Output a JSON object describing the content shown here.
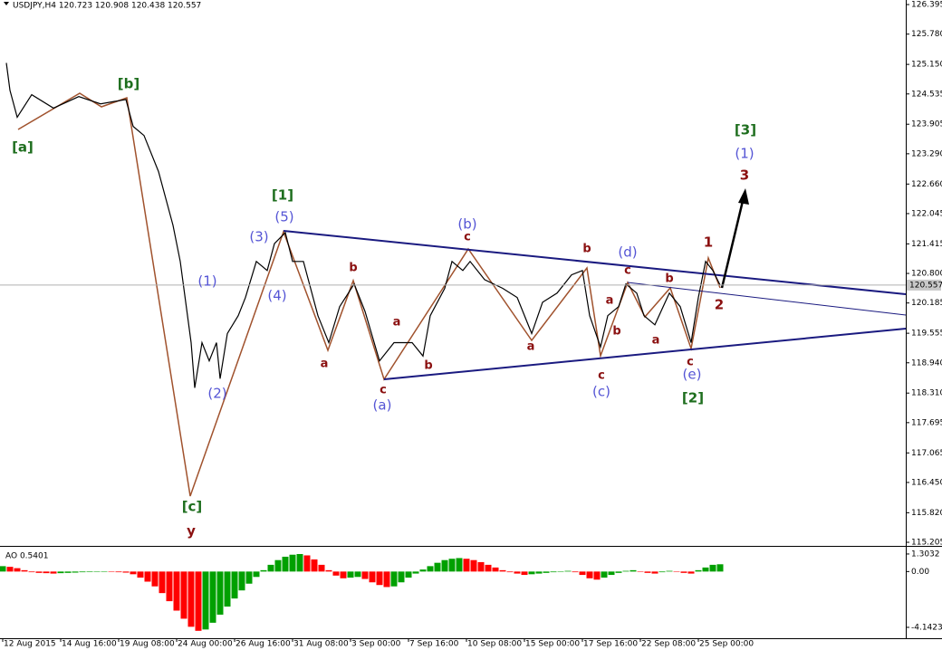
{
  "chart_data": [
    {
      "type": "line",
      "title": "USDJPY,H4  120.723 120.908 120.438 120.557",
      "x": [
        1,
        2,
        4,
        8,
        14,
        21,
        27,
        34,
        36,
        39,
        43,
        47,
        49,
        52,
        53,
        55,
        57,
        59,
        60,
        62,
        65,
        67,
        70,
        73,
        75,
        78,
        80,
        83,
        87,
        90,
        93,
        97,
        100,
        104,
        108,
        113,
        116,
        118,
        122,
        124,
        127,
        129,
        133,
        138,
        142,
        146,
        149,
        153,
        157,
        160,
        162,
        165,
        167,
        170,
        172,
        175,
        177,
        180,
        184,
        187,
        190,
        192,
        194,
        196,
        198
      ],
      "series": [
        {
          "name": "USDJPY",
          "color": "#000000",
          "values": [
            125.18,
            124.61,
            124.05,
            124.52,
            124.24,
            124.48,
            124.33,
            124.42,
            123.86,
            123.67,
            122.92,
            121.8,
            121.05,
            119.36,
            118.42,
            119.36,
            118.98,
            119.36,
            118.61,
            119.55,
            119.92,
            120.3,
            121.05,
            120.86,
            121.42,
            121.65,
            121.05,
            121.05,
            119.92,
            119.36,
            120.11,
            120.58,
            120.01,
            118.98,
            119.36,
            119.36,
            119.08,
            119.92,
            120.49,
            121.05,
            120.86,
            121.05,
            120.67,
            120.49,
            120.3,
            119.55,
            120.2,
            120.39,
            120.77,
            120.86,
            119.92,
            119.27,
            119.92,
            120.11,
            120.58,
            120.39,
            119.92,
            119.73,
            120.39,
            120.11,
            119.36,
            120.3,
            121.05,
            120.86,
            120.557
          ]
        }
      ],
      "last_price": 120.557,
      "xlim": [
        -0.75,
        249.25
      ],
      "ylim": [
        115.13,
        126.49
      ],
      "yticks": [
        126.395,
        {
          "value": 125.78,
          "label": "125.780"
        },
        {
          "value": 125.15,
          "label": "125.150"
        },
        124.535,
        123.905,
        {
          "value": 123.29,
          "label": "123.290"
        },
        {
          "value": 122.66,
          "label": "122.660"
        },
        122.045,
        121.415,
        {
          "value": 120.8,
          "label": "120.800"
        },
        120.185,
        119.555,
        {
          "value": 118.94,
          "label": "118.940"
        },
        {
          "value": 118.31,
          "label": "118.310"
        },
        117.695,
        117.065,
        {
          "value": 116.45,
          "label": "116.450"
        },
        {
          "value": 115.82,
          "label": "115.820"
        },
        115.205
      ],
      "annotations": [
        {
          "text": "[a]",
          "color": "#1e6e1e"
        },
        {
          "text": "[b]",
          "color": "#1e6e1e"
        },
        {
          "text": "[c]",
          "color": "#1e6e1e"
        },
        {
          "text": "y",
          "color": "#8b1010"
        },
        {
          "text": "[1]",
          "color": "#1e6e1e"
        },
        {
          "text": "(5)",
          "color": "#5555d5"
        },
        {
          "text": "(3)",
          "color": "#5555d5"
        },
        {
          "text": "(4)",
          "color": "#5555d5"
        },
        {
          "text": "(1)",
          "color": "#5555d5"
        },
        {
          "text": "(2)",
          "color": "#5555d5"
        },
        {
          "text": "b",
          "color": "#8b1010"
        },
        {
          "text": "a",
          "color": "#8b1010"
        },
        {
          "text": "a",
          "color": "#8b1010"
        },
        {
          "text": "c",
          "color": "#8b1010"
        },
        {
          "text": "(a)",
          "color": "#5555d5"
        },
        {
          "text": "b",
          "color": "#8b1010"
        },
        {
          "text": "(b)",
          "color": "#5555d5"
        },
        {
          "text": "c",
          "color": "#8b1010"
        },
        {
          "text": "b",
          "color": "#8b1010"
        },
        {
          "text": "a",
          "color": "#8b1010"
        },
        {
          "text": "(d)",
          "color": "#5555d5"
        },
        {
          "text": "c",
          "color": "#8b1010"
        },
        {
          "text": "a",
          "color": "#8b1010"
        },
        {
          "text": "b",
          "color": "#8b1010"
        },
        {
          "text": "c",
          "color": "#8b1010"
        },
        {
          "text": "(c)",
          "color": "#5555d5"
        },
        {
          "text": "b",
          "color": "#8b1010"
        },
        {
          "text": "a",
          "color": "#8b1010"
        },
        {
          "text": "c",
          "color": "#8b1010"
        },
        {
          "text": "(e)",
          "color": "#5555d5"
        },
        {
          "text": "[2]",
          "color": "#1e6e1e"
        },
        {
          "text": "1",
          "color": "#8b1010"
        },
        {
          "text": "2",
          "color": "#8b1010"
        },
        {
          "text": "[3]",
          "color": "#1e6e1e"
        },
        {
          "text": "(1)",
          "color": "#5555d5"
        },
        {
          "text": "3",
          "color": "#8b1010"
        }
      ]
    },
    {
      "type": "bar",
      "title": "AO 0.5401",
      "x": [
        0,
        2,
        4,
        6,
        8,
        10,
        12,
        14,
        16,
        18,
        20,
        22,
        24,
        26,
        28,
        30,
        32,
        34,
        36,
        38,
        40,
        42,
        44,
        46,
        48,
        50,
        52,
        54,
        56,
        58,
        60,
        62,
        64,
        66,
        68,
        70,
        72,
        74,
        76,
        78,
        80,
        82,
        84,
        86,
        88,
        90,
        92,
        94,
        96,
        98,
        100,
        102,
        104,
        106,
        108,
        110,
        112,
        114,
        116,
        118,
        120,
        122,
        124,
        126,
        128,
        130,
        132,
        134,
        136,
        138,
        140,
        142,
        144,
        146,
        148,
        150,
        152,
        154,
        156,
        158,
        160,
        162,
        164,
        166,
        168,
        170,
        172,
        174,
        176,
        178,
        180,
        182,
        184,
        186,
        188,
        190,
        192,
        194,
        196,
        198
      ],
      "values": [
        0.4,
        0.35,
        0.25,
        0.1,
        -0.05,
        -0.1,
        -0.12,
        -0.15,
        -0.12,
        -0.1,
        -0.08,
        -0.05,
        -0.04,
        -0.03,
        -0.02,
        -0.03,
        -0.05,
        -0.08,
        -0.2,
        -0.45,
        -0.75,
        -1.1,
        -1.6,
        -2.2,
        -2.9,
        -3.5,
        -4.1,
        -4.4,
        -4.3,
        -3.8,
        -3.2,
        -2.6,
        -2,
        -1.4,
        -0.9,
        -0.4,
        0.1,
        0.5,
        0.85,
        1.1,
        1.25,
        1.3,
        1.2,
        0.9,
        0.5,
        0.1,
        -0.3,
        -0.5,
        -0.45,
        -0.4,
        -0.55,
        -0.8,
        -1,
        -1.15,
        -1.1,
        -0.8,
        -0.45,
        -0.15,
        0.15,
        0.4,
        0.65,
        0.85,
        0.95,
        1,
        0.95,
        0.85,
        0.7,
        0.5,
        0.3,
        0.1,
        -0.05,
        -0.15,
        -0.25,
        -0.2,
        -0.15,
        -0.1,
        -0.05,
        0,
        0.05,
        -0.05,
        -0.25,
        -0.5,
        -0.6,
        -0.45,
        -0.25,
        -0.1,
        0.05,
        0.1,
        0,
        -0.1,
        -0.15,
        -0.05,
        0.05,
        0,
        -0.1,
        -0.15,
        0.1,
        0.3,
        0.5,
        0.5401
      ],
      "up_color": "#00a000",
      "down_color": "#ff0000",
      "xlim": [
        -0.75,
        249.25
      ],
      "ylim": [
        -4.95,
        1.77
      ],
      "yticks": [
        1.3032,
        {
          "value": 0,
          "label": "0.00"
        },
        -4.1423
      ],
      "xticks": [
        {
          "value": 0,
          "label": "12 Aug 2015"
        },
        {
          "value": 16,
          "label": "14 Aug 16:00"
        },
        {
          "value": 32,
          "label": "19 Aug 08:00"
        },
        {
          "value": 48,
          "label": "24 Aug 00:00"
        },
        {
          "value": 64,
          "label": "26 Aug 16:00"
        },
        {
          "value": 80,
          "label": "31 Aug 08:00"
        },
        {
          "value": 96,
          "label": "3 Sep 00:00"
        },
        {
          "value": 112,
          "label": "7 Sep 16:00"
        },
        {
          "value": 128,
          "label": "10 Sep 08:00"
        },
        {
          "value": 144,
          "label": "15 Sep 00:00"
        },
        {
          "value": 160,
          "label": "17 Sep 16:00"
        },
        {
          "value": 176,
          "label": "22 Sep 08:00"
        },
        {
          "value": 192,
          "label": "25 Sep 00:00"
        }
      ]
    }
  ]
}
